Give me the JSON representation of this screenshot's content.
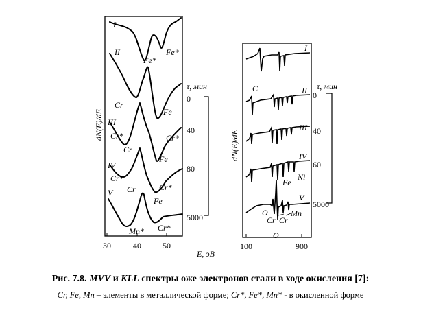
{
  "figure": {
    "caption_line1": {
      "prefix": "Рис. 7.8.",
      "mvv": "MVV",
      "and": "и",
      "kll": "KLL",
      "rest": "спектры оже электронов стали в ходе окисления [7]:"
    },
    "caption_line2": {
      "metal": "Cr, Fe, Mn",
      "mid": "– элементы в металлической форме;",
      "oxide": "Cr*, Fe*, Mn*",
      "end": "- в окисленной форме"
    }
  },
  "chart_data": [
    {
      "type": "line",
      "panel": "MVV",
      "xlabel": "E, эВ",
      "ylabel": "dN(E)/dE",
      "x_ticks": [
        "30",
        "40",
        "50"
      ],
      "xlim": [
        29,
        55
      ],
      "time_axis_label": "τ, мин",
      "time_ticks": [
        "0",
        "40",
        "80",
        "5000"
      ],
      "series": [
        {
          "name": "I",
          "peak_labels": [
            "Fe*",
            "Fe*"
          ]
        },
        {
          "name": "II",
          "peak_labels": [
            "Cr",
            "Fe"
          ]
        },
        {
          "name": "III",
          "peak_labels": [
            "Cr*",
            "Cr",
            "Fe",
            "Cr*"
          ]
        },
        {
          "name": "IV",
          "peak_labels": [
            "Cr*",
            "Cr",
            "Fe",
            "Cr*"
          ]
        },
        {
          "name": "V",
          "peak_labels": [
            "Mn*",
            "Cr*"
          ]
        }
      ]
    },
    {
      "type": "line",
      "panel": "KLL",
      "xlabel": "",
      "ylabel": "dN(E)/dE",
      "x_ticks": [
        "100",
        "900"
      ],
      "xlim": [
        60,
        960
      ],
      "time_axis_label": "τ, мин",
      "time_ticks": [
        "0",
        "40",
        "60",
        "5000"
      ],
      "series": [
        {
          "name": "I",
          "peak_labels": [
            "C"
          ]
        },
        {
          "name": "II",
          "peak_labels": []
        },
        {
          "name": "III",
          "peak_labels": []
        },
        {
          "name": "IV",
          "peak_labels": [
            "Fe",
            "Ni"
          ]
        },
        {
          "name": "V",
          "peak_labels": [
            "O",
            "Cr",
            "Cr",
            "Mn",
            "O"
          ]
        }
      ]
    }
  ]
}
